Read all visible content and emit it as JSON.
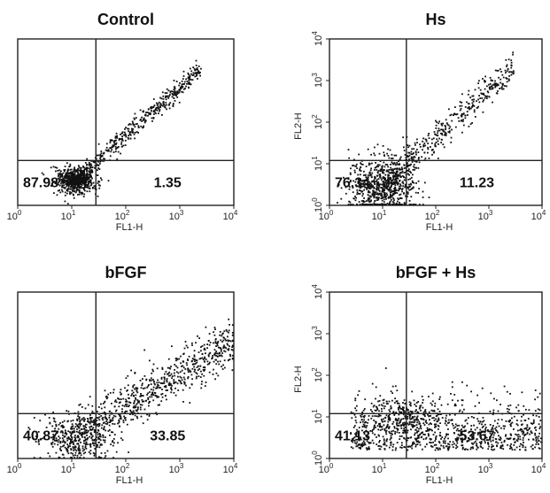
{
  "chart_data": [
    {
      "type": "scatter",
      "title": "Control",
      "xlabel": "FL1-H",
      "ylabel": "",
      "xscale": "log",
      "yscale": "log",
      "xlim": [
        1,
        10000
      ],
      "ylim": [
        1,
        10000
      ],
      "x_ticks": [
        "10",
        "10",
        "10",
        "10",
        "10"
      ],
      "x_tick_exps": [
        "0",
        "1",
        "2",
        "3",
        "4"
      ],
      "y_ticks": [],
      "y_tick_exps": [],
      "gate_x": 28,
      "gate_y": 12,
      "quadrant_values": {
        "lower_left": "87.98",
        "lower_right": "1.35",
        "upper_left": "",
        "upper_right": ""
      },
      "population": {
        "dense_center": [
          12,
          4
        ],
        "diagonal_trend": true,
        "max_x": 2500
      }
    },
    {
      "type": "scatter",
      "title": "Hs",
      "xlabel": "FL1-H",
      "ylabel": "FL2-H",
      "xscale": "log",
      "yscale": "log",
      "xlim": [
        1,
        10000
      ],
      "ylim": [
        1,
        10000
      ],
      "x_ticks": [
        "10",
        "10",
        "10",
        "10",
        "10"
      ],
      "x_tick_exps": [
        "0",
        "1",
        "2",
        "3",
        "4"
      ],
      "y_ticks": [
        "10",
        "10",
        "10",
        "10",
        "10"
      ],
      "y_tick_exps": [
        "0",
        "1",
        "2",
        "3",
        "4"
      ],
      "gate_x": 28,
      "gate_y": 12,
      "quadrant_values": {
        "lower_left": "76.34",
        "lower_right": "11.23",
        "upper_left": "",
        "upper_right": ""
      },
      "population": {
        "dense_center": [
          10,
          3
        ],
        "diagonal_trend": true,
        "max_x": 3000
      }
    },
    {
      "type": "scatter",
      "title": "bFGF",
      "xlabel": "FL1-H",
      "ylabel": "",
      "xscale": "log",
      "yscale": "log",
      "xlim": [
        1,
        10000
      ],
      "ylim": [
        1,
        10000
      ],
      "x_ticks": [
        "10",
        "10",
        "10",
        "10",
        "10"
      ],
      "x_tick_exps": [
        "0",
        "1",
        "2",
        "3",
        "4"
      ],
      "y_ticks": [],
      "y_tick_exps": [],
      "gate_x": 28,
      "gate_y": 12,
      "quadrant_values": {
        "lower_left": "40.87",
        "lower_right": "33.85",
        "upper_left": "",
        "upper_right": ""
      },
      "population": {
        "dense_center": [
          200,
          20
        ],
        "diagonal_trend": true,
        "max_x": 10000
      }
    },
    {
      "type": "scatter",
      "title": "bFGF + Hs",
      "xlabel": "FL1-H",
      "ylabel": "FL2-H",
      "xscale": "log",
      "yscale": "log",
      "xlim": [
        1,
        10000
      ],
      "ylim": [
        1,
        10000
      ],
      "x_ticks": [
        "10",
        "10",
        "10",
        "10",
        "10"
      ],
      "x_tick_exps": [
        "0",
        "1",
        "2",
        "3",
        "4"
      ],
      "y_ticks": [
        "10",
        "10",
        "10",
        "10",
        "10"
      ],
      "y_tick_exps": [
        "0",
        "1",
        "2",
        "3",
        "4"
      ],
      "gate_x": 28,
      "gate_y": 12,
      "quadrant_values": {
        "lower_left": "41.13",
        "lower_right": "53.67",
        "upper_left": "",
        "upper_right": ""
      },
      "population": {
        "dense_center": [
          60,
          8
        ],
        "diagonal_trend": false,
        "max_x": 5000
      }
    }
  ]
}
